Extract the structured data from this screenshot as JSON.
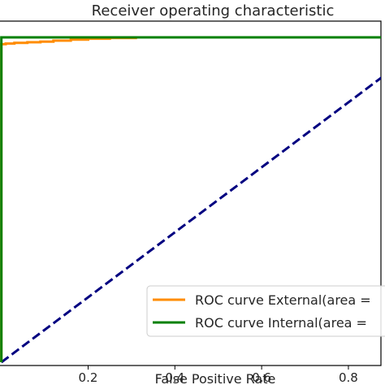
{
  "chart_data": {
    "type": "line",
    "title": "Receiver operating characteristic",
    "xlabel": "False Positive Rate",
    "ylabel": "",
    "xlim": [
      -0.005,
      0.875
    ],
    "ylim": [
      -0.01,
      1.05
    ],
    "xticks": [
      0.2,
      0.4,
      0.6,
      0.8
    ],
    "xtick_labels": [
      "0.2",
      "0.4",
      "0.6",
      "0.8"
    ],
    "grid": false,
    "legend_position": "lower-right",
    "series": [
      {
        "name": "ROC curve External(area =",
        "color": "#ff8c00",
        "style": "solid",
        "x": [
          0.0,
          0.0,
          0.01,
          0.01,
          0.03,
          0.03,
          0.06,
          0.06,
          0.09,
          0.09,
          0.12,
          0.12,
          0.16,
          0.16,
          0.2,
          0.2,
          0.25,
          0.25,
          0.31,
          0.31,
          0.9
        ],
        "y": [
          0.0,
          0.979,
          0.979,
          0.981,
          0.981,
          0.983,
          0.983,
          0.985,
          0.985,
          0.987,
          0.987,
          0.99,
          0.99,
          0.993,
          0.993,
          0.996,
          0.996,
          0.998,
          0.998,
          1.0,
          1.0
        ]
      },
      {
        "name": "ROC curve Internal(area =",
        "color": "#008000",
        "style": "solid",
        "x": [
          0.0,
          0.0,
          0.9
        ],
        "y": [
          0.0,
          1.0,
          1.0
        ]
      },
      {
        "name": "",
        "color": "#000080",
        "style": "dashed",
        "x": [
          0.0,
          0.9
        ],
        "y": [
          0.0,
          0.9
        ]
      }
    ]
  }
}
